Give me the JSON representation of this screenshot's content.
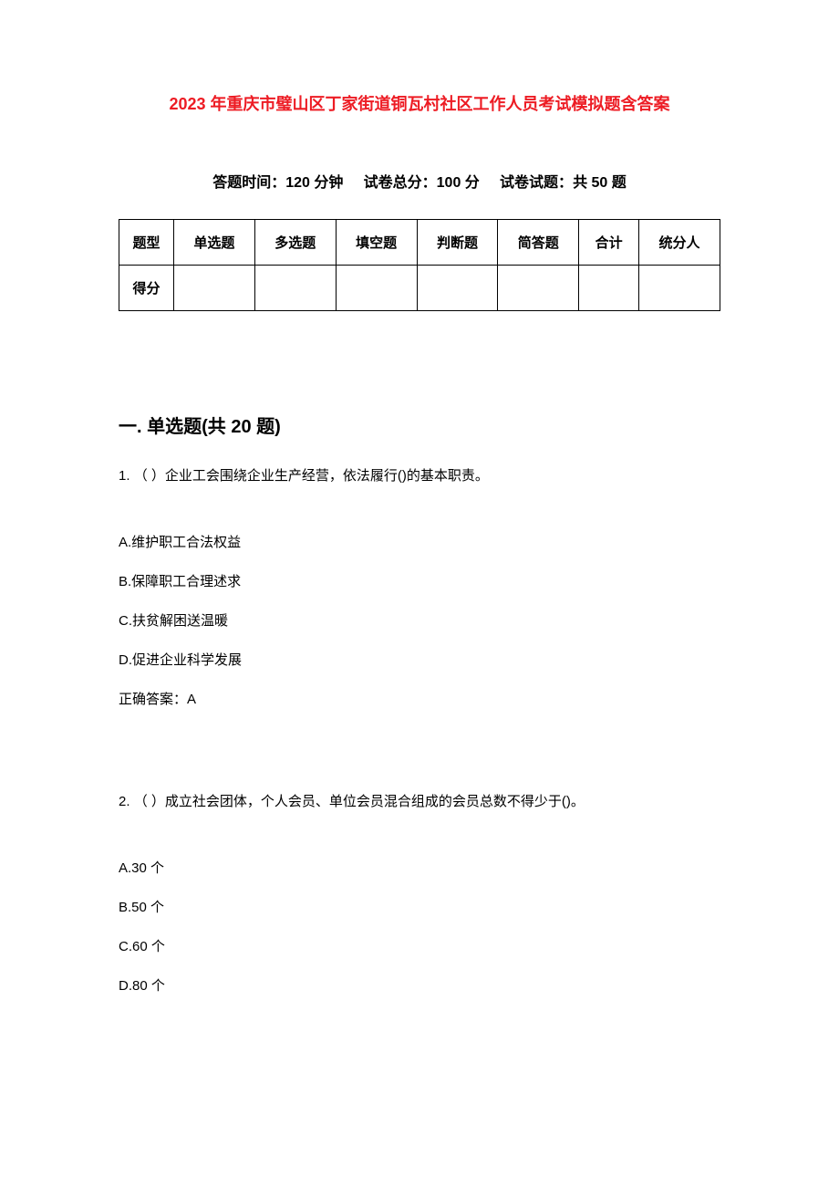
{
  "title": "2023 年重庆市璧山区丁家街道铜瓦村社区工作人员考试模拟题含答案",
  "exam_info": {
    "time_label": "答题时间：",
    "time_value": "120 分钟",
    "total_label": "试卷总分：",
    "total_value": "100 分",
    "count_label": "试卷试题：",
    "count_value": "共 50 题"
  },
  "score_table": {
    "columns": [
      "题型",
      "单选题",
      "多选题",
      "填空题",
      "判断题",
      "简答题",
      "合计",
      "统分人"
    ],
    "row_label": "得分",
    "row_values": [
      "",
      "",
      "",
      "",
      "",
      "",
      ""
    ]
  },
  "section1": {
    "heading": "一. 单选题(共 20 题)",
    "questions": [
      {
        "number": "1.",
        "text": "（ ）企业工会围绕企业生产经营，依法履行()的基本职责。",
        "options": [
          "A.维护职工合法权益",
          "B.保障职工合理述求",
          "C.扶贫解困送温暖",
          "D.促进企业科学发展"
        ],
        "answer": "正确答案：A"
      },
      {
        "number": "2.",
        "text": "（ ）成立社会团体，个人会员、单位会员混合组成的会员总数不得少于()。",
        "options": [
          "A.30 个",
          "B.50 个",
          "C.60 个",
          "D.80 个"
        ],
        "answer": ""
      }
    ]
  },
  "colors": {
    "title": "#ed1c24",
    "text": "#000000",
    "background": "#ffffff",
    "border": "#000000"
  },
  "typography": {
    "title_fontsize": 18,
    "body_fontsize": 15,
    "heading_fontsize": 20,
    "info_fontsize": 16
  }
}
